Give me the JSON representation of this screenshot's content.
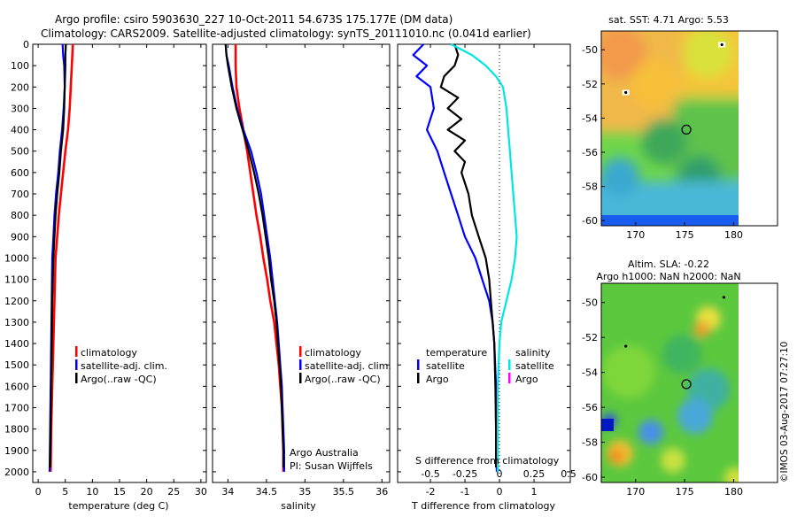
{
  "header": {
    "line1": "Argo profile: csiro 5903630_227 10-Oct-2011 54.673S 175.177E (DM data)",
    "line2": "Climatology: CARS2009. Satellite-adjusted climatology: synTS_20111010.nc (0.041d earlier)"
  },
  "colors": {
    "climatology": "#ff0000",
    "satellite": "#0000ff",
    "argo": "#000000",
    "cyan": "#00e5e5",
    "magenta": "#ff00ff"
  },
  "depth_ticks": [
    0,
    100,
    200,
    300,
    400,
    500,
    600,
    700,
    800,
    900,
    1000,
    1100,
    1200,
    1300,
    1400,
    1500,
    1600,
    1700,
    1800,
    1900,
    2000
  ],
  "chart_data": [
    {
      "type": "line",
      "name": "temperature",
      "xlabel": "temperature (deg C)",
      "ylabel": "depth",
      "xlim": [
        -1,
        31
      ],
      "ylim": [
        2050,
        0
      ],
      "xticks": [
        0,
        5,
        10,
        15,
        20,
        25,
        30
      ],
      "legend": [
        "climatology",
        "satellite-adj. clim.",
        "Argo(..raw -QC)"
      ],
      "series": [
        {
          "name": "climatology",
          "color": "#ff0000",
          "points": [
            [
              6.4,
              0
            ],
            [
              6.2,
              100
            ],
            [
              6.0,
              200
            ],
            [
              5.8,
              300
            ],
            [
              5.5,
              400
            ],
            [
              5.0,
              500
            ],
            [
              4.6,
              600
            ],
            [
              4.2,
              700
            ],
            [
              3.8,
              800
            ],
            [
              3.5,
              900
            ],
            [
              3.2,
              1000
            ],
            [
              3.0,
              1200
            ],
            [
              2.8,
              1400
            ],
            [
              2.6,
              1600
            ],
            [
              2.4,
              1800
            ],
            [
              2.3,
              2000
            ]
          ]
        },
        {
          "name": "satellite-adj. clim.",
          "color": "#0000ff",
          "points": [
            [
              4.5,
              0
            ],
            [
              4.6,
              50
            ],
            [
              4.8,
              100
            ],
            [
              4.9,
              200
            ],
            [
              4.7,
              300
            ],
            [
              4.4,
              400
            ],
            [
              4.0,
              500
            ],
            [
              3.7,
              600
            ],
            [
              3.3,
              700
            ],
            [
              3.0,
              800
            ],
            [
              2.8,
              900
            ],
            [
              2.6,
              1000
            ],
            [
              2.5,
              1200
            ],
            [
              2.4,
              1400
            ],
            [
              2.3,
              1600
            ],
            [
              2.2,
              1800
            ],
            [
              2.1,
              2000
            ]
          ]
        },
        {
          "name": "Argo(..raw -QC)",
          "color": "#000000",
          "points": [
            [
              5.1,
              0
            ],
            [
              5.0,
              50
            ],
            [
              5.0,
              100
            ],
            [
              4.9,
              200
            ],
            [
              4.8,
              300
            ],
            [
              4.6,
              400
            ],
            [
              4.2,
              500
            ],
            [
              3.9,
              600
            ],
            [
              3.5,
              700
            ],
            [
              3.2,
              800
            ],
            [
              3.0,
              900
            ],
            [
              2.8,
              1000
            ],
            [
              2.6,
              1200
            ],
            [
              2.5,
              1400
            ],
            [
              2.4,
              1600
            ],
            [
              2.3,
              1800
            ],
            [
              2.2,
              1980
            ]
          ]
        }
      ]
    },
    {
      "type": "line",
      "name": "salinity",
      "xlabel": "salinity",
      "ylabel": "depth",
      "xlim": [
        33.8,
        36.1
      ],
      "ylim": [
        2050,
        0
      ],
      "xticks": [
        34,
        34.5,
        35,
        35.5,
        36
      ],
      "xticklabels": [
        "34",
        "34.5",
        "35",
        "35.5",
        "36"
      ],
      "legend": [
        "climatology",
        "satellite-adj. clim.",
        "Argo(..raw -QC)"
      ],
      "notes": [
        "Argo Australia",
        "PI: Susan Wijffels"
      ],
      "series": [
        {
          "name": "climatology",
          "color": "#ff0000",
          "points": [
            [
              34.1,
              0
            ],
            [
              34.1,
              100
            ],
            [
              34.11,
              200
            ],
            [
              34.15,
              300
            ],
            [
              34.2,
              400
            ],
            [
              34.25,
              500
            ],
            [
              34.29,
              600
            ],
            [
              34.33,
              700
            ],
            [
              34.37,
              800
            ],
            [
              34.42,
              900
            ],
            [
              34.46,
              1000
            ],
            [
              34.51,
              1100
            ],
            [
              34.55,
              1200
            ],
            [
              34.6,
              1300
            ],
            [
              34.63,
              1400
            ],
            [
              34.66,
              1500
            ],
            [
              34.68,
              1600
            ],
            [
              34.7,
              1700
            ],
            [
              34.71,
              1800
            ],
            [
              34.72,
              1900
            ],
            [
              34.72,
              2000
            ]
          ]
        },
        {
          "name": "satellite-adj. clim.",
          "color": "#0000ff",
          "points": [
            [
              33.97,
              0
            ],
            [
              33.98,
              50
            ],
            [
              34.01,
              100
            ],
            [
              34.06,
              200
            ],
            [
              34.12,
              300
            ],
            [
              34.2,
              400
            ],
            [
              34.3,
              500
            ],
            [
              34.37,
              600
            ],
            [
              34.43,
              700
            ],
            [
              34.47,
              800
            ],
            [
              34.51,
              900
            ],
            [
              34.55,
              1000
            ],
            [
              34.58,
              1100
            ],
            [
              34.61,
              1200
            ],
            [
              34.64,
              1300
            ],
            [
              34.66,
              1400
            ],
            [
              34.68,
              1500
            ],
            [
              34.7,
              1600
            ],
            [
              34.71,
              1700
            ],
            [
              34.72,
              1800
            ],
            [
              34.73,
              1900
            ],
            [
              34.73,
              2000
            ]
          ]
        },
        {
          "name": "Argo(..raw -QC)",
          "color": "#000000",
          "points": [
            [
              33.97,
              0
            ],
            [
              33.98,
              50
            ],
            [
              34.0,
              100
            ],
            [
              34.05,
              200
            ],
            [
              34.11,
              300
            ],
            [
              34.19,
              400
            ],
            [
              34.27,
              500
            ],
            [
              34.34,
              600
            ],
            [
              34.4,
              700
            ],
            [
              34.45,
              800
            ],
            [
              34.49,
              900
            ],
            [
              34.53,
              1000
            ],
            [
              34.56,
              1100
            ],
            [
              34.6,
              1200
            ],
            [
              34.63,
              1300
            ],
            [
              34.65,
              1400
            ],
            [
              34.67,
              1500
            ],
            [
              34.69,
              1600
            ],
            [
              34.7,
              1700
            ],
            [
              34.71,
              1800
            ],
            [
              34.72,
              1900
            ],
            [
              34.72,
              1980
            ]
          ]
        }
      ]
    },
    {
      "type": "line",
      "name": "difference",
      "title_inside": "S difference from climatology",
      "xlabel": "T difference from climatology",
      "xticks_top": [
        -0.5,
        -0.25,
        0,
        0.25,
        0.5
      ],
      "xticks_top_labels": [
        "-0.5",
        "-0.25",
        "0",
        "0.25",
        "0.5"
      ],
      "xticks_top_scale": 4,
      "xlim": [
        -2.95,
        2.05
      ],
      "ylim": [
        2050,
        0
      ],
      "xticks": [
        -2,
        -1,
        0,
        1
      ],
      "legend_temperature": {
        "title": "temperature",
        "items": [
          "satellite",
          "Argo"
        ]
      },
      "legend_salinity": {
        "title": "salinity",
        "items": [
          "satellite",
          "Argo"
        ]
      },
      "series": [
        {
          "name": "T satellite",
          "color": "#0000ff",
          "points": [
            [
              -2.2,
              0
            ],
            [
              -2.5,
              50
            ],
            [
              -2.1,
              100
            ],
            [
              -2.4,
              150
            ],
            [
              -2.0,
              200
            ],
            [
              -1.9,
              300
            ],
            [
              -2.1,
              400
            ],
            [
              -1.8,
              500
            ],
            [
              -1.6,
              600
            ],
            [
              -1.4,
              700
            ],
            [
              -1.2,
              800
            ],
            [
              -1.0,
              900
            ],
            [
              -0.7,
              1000
            ],
            [
              -0.5,
              1100
            ],
            [
              -0.3,
              1200
            ],
            [
              -0.2,
              1300
            ],
            [
              -0.15,
              1400
            ],
            [
              -0.1,
              1600
            ],
            [
              -0.08,
              1800
            ],
            [
              -0.08,
              2000
            ]
          ]
        },
        {
          "name": "T Argo",
          "color": "#000000",
          "points": [
            [
              -1.3,
              0
            ],
            [
              -1.2,
              50
            ],
            [
              -1.3,
              100
            ],
            [
              -1.6,
              150
            ],
            [
              -1.7,
              200
            ],
            [
              -1.2,
              250
            ],
            [
              -1.5,
              300
            ],
            [
              -1.1,
              350
            ],
            [
              -1.5,
              400
            ],
            [
              -1.0,
              450
            ],
            [
              -1.3,
              500
            ],
            [
              -1.0,
              550
            ],
            [
              -1.1,
              600
            ],
            [
              -0.9,
              700
            ],
            [
              -0.8,
              800
            ],
            [
              -0.6,
              900
            ],
            [
              -0.4,
              1000
            ],
            [
              -0.3,
              1100
            ],
            [
              -0.25,
              1200
            ],
            [
              -0.2,
              1300
            ],
            [
              -0.15,
              1400
            ],
            [
              -0.12,
              1600
            ],
            [
              -0.1,
              1800
            ],
            [
              -0.1,
              1980
            ]
          ]
        },
        {
          "name": "S satellite",
          "color": "#00e5e5",
          "points": [
            [
              -1.4,
              0
            ],
            [
              -0.8,
              50
            ],
            [
              -0.4,
              100
            ],
            [
              -0.1,
              150
            ],
            [
              0.1,
              200
            ],
            [
              0.2,
              300
            ],
            [
              0.25,
              400
            ],
            [
              0.3,
              500
            ],
            [
              0.35,
              600
            ],
            [
              0.4,
              700
            ],
            [
              0.45,
              800
            ],
            [
              0.5,
              900
            ],
            [
              0.45,
              1000
            ],
            [
              0.35,
              1100
            ],
            [
              0.2,
              1200
            ],
            [
              0.05,
              1300
            ],
            [
              0.0,
              1400
            ],
            [
              -0.05,
              1600
            ],
            [
              -0.05,
              1800
            ],
            [
              -0.05,
              2000
            ]
          ]
        }
      ]
    },
    {
      "type": "heatmap",
      "name": "sst-map",
      "title": "sat. SST: 4.71  Argo: 5.53",
      "xlim": [
        166.5,
        180.5
      ],
      "ylim": [
        -60.3,
        -48.9
      ],
      "xticks": [
        170,
        175,
        180
      ],
      "yticks": [
        -50,
        -52,
        -54,
        -56,
        -58,
        -60
      ],
      "markers": [
        {
          "lon": 175.177,
          "lat": -54.673,
          "symbol": "circle"
        },
        {
          "lon": 169.0,
          "lat": -52.5,
          "symbol": "dot"
        },
        {
          "lon": 178.8,
          "lat": -49.7,
          "symbol": "dot"
        }
      ]
    },
    {
      "type": "heatmap",
      "name": "sla-map",
      "title": "Altim. SLA: -0.22",
      "subtitle": "Argo h1000: NaN h2000: NaN",
      "xlim": [
        166.5,
        180.5
      ],
      "ylim": [
        -60.3,
        -48.9
      ],
      "xticks": [
        170,
        175,
        180
      ],
      "yticks": [
        -50,
        -52,
        -54,
        -56,
        -58,
        -60
      ],
      "markers": [
        {
          "lon": 175.177,
          "lat": -54.673,
          "symbol": "circle"
        },
        {
          "lon": 169.0,
          "lat": -52.5,
          "symbol": "dot"
        },
        {
          "lon": 179.0,
          "lat": -49.7,
          "symbol": "dot"
        }
      ]
    }
  ],
  "watermark": "©IMOS 03-Aug-2017 07:27:10"
}
